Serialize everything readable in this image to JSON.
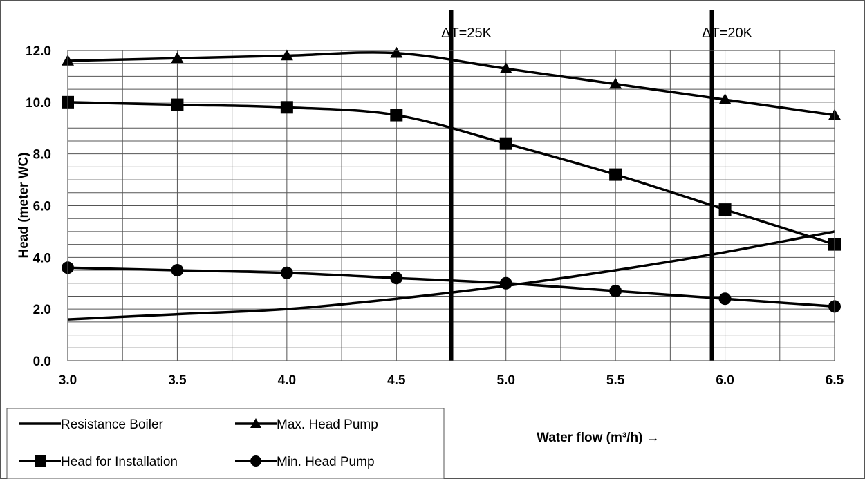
{
  "chart_data": {
    "type": "line",
    "xlabel": "Water flow (m³/h) →",
    "ylabel": "Head (meter WC)",
    "xlim": [
      3.0,
      6.5
    ],
    "ylim": [
      0.0,
      12.0
    ],
    "x_ticks": [
      "3.0",
      "3.5",
      "4.0",
      "4.5",
      "5.0",
      "5.5",
      "6.0",
      "6.5"
    ],
    "y_ticks": [
      "0.0",
      "2.0",
      "4.0",
      "6.0",
      "8.0",
      "10.0",
      "12.0"
    ],
    "grid": true,
    "legend_position": "bottom-left",
    "reference_lines": [
      {
        "label": "ΔT=25K",
        "x": 4.75
      },
      {
        "label": "ΔT=20K",
        "x": 5.94
      }
    ],
    "series": [
      {
        "name": "Resistance Boiler",
        "marker": "none",
        "x": [
          3.0,
          3.5,
          4.0,
          4.5,
          5.0,
          5.5,
          6.0,
          6.5
        ],
        "y": [
          1.6,
          1.8,
          2.0,
          2.4,
          2.9,
          3.5,
          4.2,
          5.0
        ]
      },
      {
        "name": "Max. Head Pump",
        "marker": "triangle",
        "x": [
          3.0,
          3.5,
          4.0,
          4.5,
          5.0,
          5.5,
          6.0,
          6.5
        ],
        "y": [
          11.6,
          11.7,
          11.8,
          11.9,
          11.3,
          10.7,
          10.1,
          9.5
        ]
      },
      {
        "name": "Head for Installation",
        "marker": "square",
        "x": [
          3.0,
          3.5,
          4.0,
          4.5,
          5.0,
          5.5,
          6.0,
          6.5
        ],
        "y": [
          10.0,
          9.9,
          9.8,
          9.5,
          8.4,
          7.2,
          5.85,
          4.5
        ]
      },
      {
        "name": "Min. Head Pump",
        "marker": "circle",
        "x": [
          3.0,
          3.5,
          4.0,
          4.5,
          5.0,
          5.5,
          6.0,
          6.5
        ],
        "y": [
          3.6,
          3.5,
          3.4,
          3.2,
          3.0,
          2.7,
          2.4,
          2.1
        ]
      }
    ],
    "legend": [
      {
        "label": "Resistance Boiler",
        "marker": "none"
      },
      {
        "label": "Max. Head Pump",
        "marker": "triangle"
      },
      {
        "label": "Head for Installation",
        "marker": "square"
      },
      {
        "label": "Min. Head Pump",
        "marker": "circle"
      }
    ]
  }
}
